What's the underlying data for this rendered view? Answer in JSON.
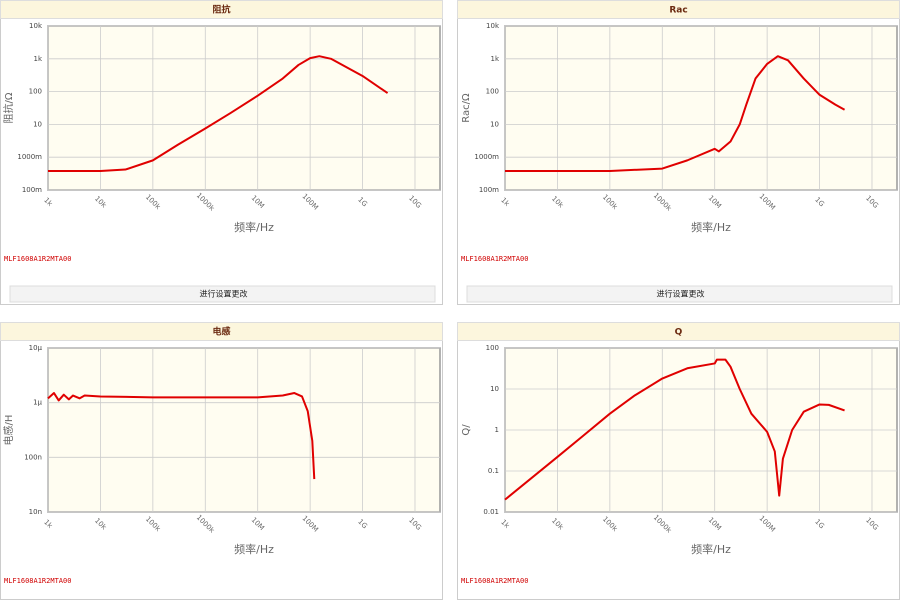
{
  "chart_data": [
    {
      "type": "line",
      "title": "阻抗",
      "ylabel": "阻抗/Ω",
      "xlabel": "频率/Hz",
      "note": "MLF1608A1R2MTA00",
      "button": "进行设置更改",
      "log_x": true,
      "log_y": true,
      "grid": true,
      "xlim": [
        1000,
        30000000000
      ],
      "ylim": [
        0.1,
        10000
      ],
      "xticks": [
        {
          "value": 1000,
          "label": "1k"
        },
        {
          "value": 10000,
          "label": "10k"
        },
        {
          "value": 100000,
          "label": "100k"
        },
        {
          "value": 1000000,
          "label": "1000k"
        },
        {
          "value": 10000000,
          "label": "10M"
        },
        {
          "value": 100000000,
          "label": "100M"
        },
        {
          "value": 1000000000,
          "label": "1G"
        },
        {
          "value": 10000000000,
          "label": "10G"
        }
      ],
      "yticks": [
        {
          "value": 0.1,
          "label": "100m"
        },
        {
          "value": 1,
          "label": "1000m"
        },
        10,
        100,
        {
          "value": 1000,
          "label": "1k"
        },
        {
          "value": 10000,
          "label": "10k"
        }
      ],
      "x": [
        1000,
        10000,
        30000,
        100000,
        300000,
        1000000,
        3000000,
        10000000,
        30000000,
        60000000,
        100000000,
        150000000,
        250000000,
        500000000,
        1000000000,
        3000000000
      ],
      "series": [
        {
          "color": "#e00000",
          "values": [
            0.38,
            0.38,
            0.42,
            0.8,
            2.4,
            7.5,
            22,
            75,
            250,
            650,
            1050,
            1200,
            1000,
            550,
            300,
            90
          ]
        }
      ]
    },
    {
      "type": "line",
      "title": "Rac",
      "ylabel": "Rac/Ω",
      "xlabel": "频率/Hz",
      "note": "MLF1608A1R2MTA00",
      "button": "进行设置更改",
      "log_x": true,
      "log_y": true,
      "grid": true,
      "xlim": [
        1000,
        30000000000
      ],
      "ylim": [
        0.1,
        10000
      ],
      "xticks": [
        {
          "value": 1000,
          "label": "1k"
        },
        {
          "value": 10000,
          "label": "10k"
        },
        {
          "value": 100000,
          "label": "100k"
        },
        {
          "value": 1000000,
          "label": "1000k"
        },
        {
          "value": 10000000,
          "label": "10M"
        },
        {
          "value": 100000000,
          "label": "100M"
        },
        {
          "value": 1000000000,
          "label": "1G"
        },
        {
          "value": 10000000000,
          "label": "10G"
        }
      ],
      "yticks": [
        {
          "value": 0.1,
          "label": "100m"
        },
        {
          "value": 1,
          "label": "1000m"
        },
        10,
        100,
        {
          "value": 1000,
          "label": "1k"
        },
        {
          "value": 10000,
          "label": "10k"
        }
      ],
      "x": [
        1000,
        100000,
        1000000,
        3000000,
        10000000,
        12000000,
        20000000,
        30000000,
        40000000,
        60000000,
        100000000,
        160000000,
        250000000,
        500000000,
        1000000000,
        2000000000,
        3000000000
      ],
      "series": [
        {
          "color": "#e00000",
          "values": [
            0.38,
            0.38,
            0.45,
            0.8,
            1.8,
            1.5,
            3,
            10,
            40,
            250,
            700,
            1200,
            900,
            250,
            80,
            40,
            28
          ]
        }
      ]
    },
    {
      "type": "line",
      "title": "电感",
      "ylabel": "电感/H",
      "xlabel": "频率/Hz",
      "note": "MLF1608A1R2MTA00",
      "log_x": true,
      "log_y": true,
      "grid": true,
      "xlim": [
        1000,
        30000000000
      ],
      "ylim": [
        1e-08,
        1e-05
      ],
      "xticks": [
        {
          "value": 1000,
          "label": "1k"
        },
        {
          "value": 10000,
          "label": "10k"
        },
        {
          "value": 100000,
          "label": "100k"
        },
        {
          "value": 1000000,
          "label": "1000k"
        },
        {
          "value": 10000000,
          "label": "10M"
        },
        {
          "value": 100000000,
          "label": "100M"
        },
        {
          "value": 1000000000,
          "label": "1G"
        },
        {
          "value": 10000000000,
          "label": "10G"
        }
      ],
      "yticks": [
        {
          "value": 1e-08,
          "label": "10n"
        },
        {
          "value": 1e-07,
          "label": "100n"
        },
        {
          "value": 1e-06,
          "label": "1μ"
        },
        {
          "value": 1e-05,
          "label": "10μ"
        }
      ],
      "x": [
        1000,
        1300,
        1600,
        2000,
        2500,
        3000,
        4000,
        5000,
        10000,
        100000,
        1000000,
        10000000,
        30000000,
        50000000,
        70000000,
        90000000,
        110000000,
        120000000
      ],
      "series": [
        {
          "color": "#e00000",
          "values": [
            1.2e-06,
            1.5e-06,
            1.1e-06,
            1.4e-06,
            1.15e-06,
            1.35e-06,
            1.2e-06,
            1.35e-06,
            1.3e-06,
            1.25e-06,
            1.25e-06,
            1.25e-06,
            1.35e-06,
            1.5e-06,
            1.3e-06,
            7e-07,
            2e-07,
            4e-08
          ]
        }
      ]
    },
    {
      "type": "line",
      "title": "Q",
      "ylabel": "Q/",
      "xlabel": "频率/Hz",
      "note": "MLF1608A1R2MTA00",
      "log_x": true,
      "log_y": true,
      "grid": true,
      "xlim": [
        1000,
        30000000000
      ],
      "ylim": [
        0.01,
        100
      ],
      "xticks": [
        {
          "value": 1000,
          "label": "1k"
        },
        {
          "value": 10000,
          "label": "10k"
        },
        {
          "value": 100000,
          "label": "100k"
        },
        {
          "value": 1000000,
          "label": "1000k"
        },
        {
          "value": 10000000,
          "label": "10M"
        },
        {
          "value": 100000000,
          "label": "100M"
        },
        {
          "value": 1000000000,
          "label": "1G"
        },
        {
          "value": 10000000000,
          "label": "10G"
        }
      ],
      "yticks": [
        0.01,
        0.1,
        1,
        10,
        100
      ],
      "x": [
        1000,
        10000,
        30000,
        100000,
        300000,
        1000000,
        3000000,
        10000000,
        11000000,
        16000000,
        20000000,
        30000000,
        50000000,
        100000000,
        140000000,
        170000000,
        200000000,
        300000000,
        500000000,
        1000000000,
        1500000000,
        3000000000
      ],
      "series": [
        {
          "color": "#e00000",
          "values": [
            0.02,
            0.22,
            0.7,
            2.5,
            7,
            18,
            32,
            42,
            52,
            52,
            35,
            10,
            2.5,
            0.9,
            0.3,
            0.025,
            0.2,
            1,
            2.8,
            4.2,
            4.1,
            3
          ]
        }
      ]
    }
  ]
}
